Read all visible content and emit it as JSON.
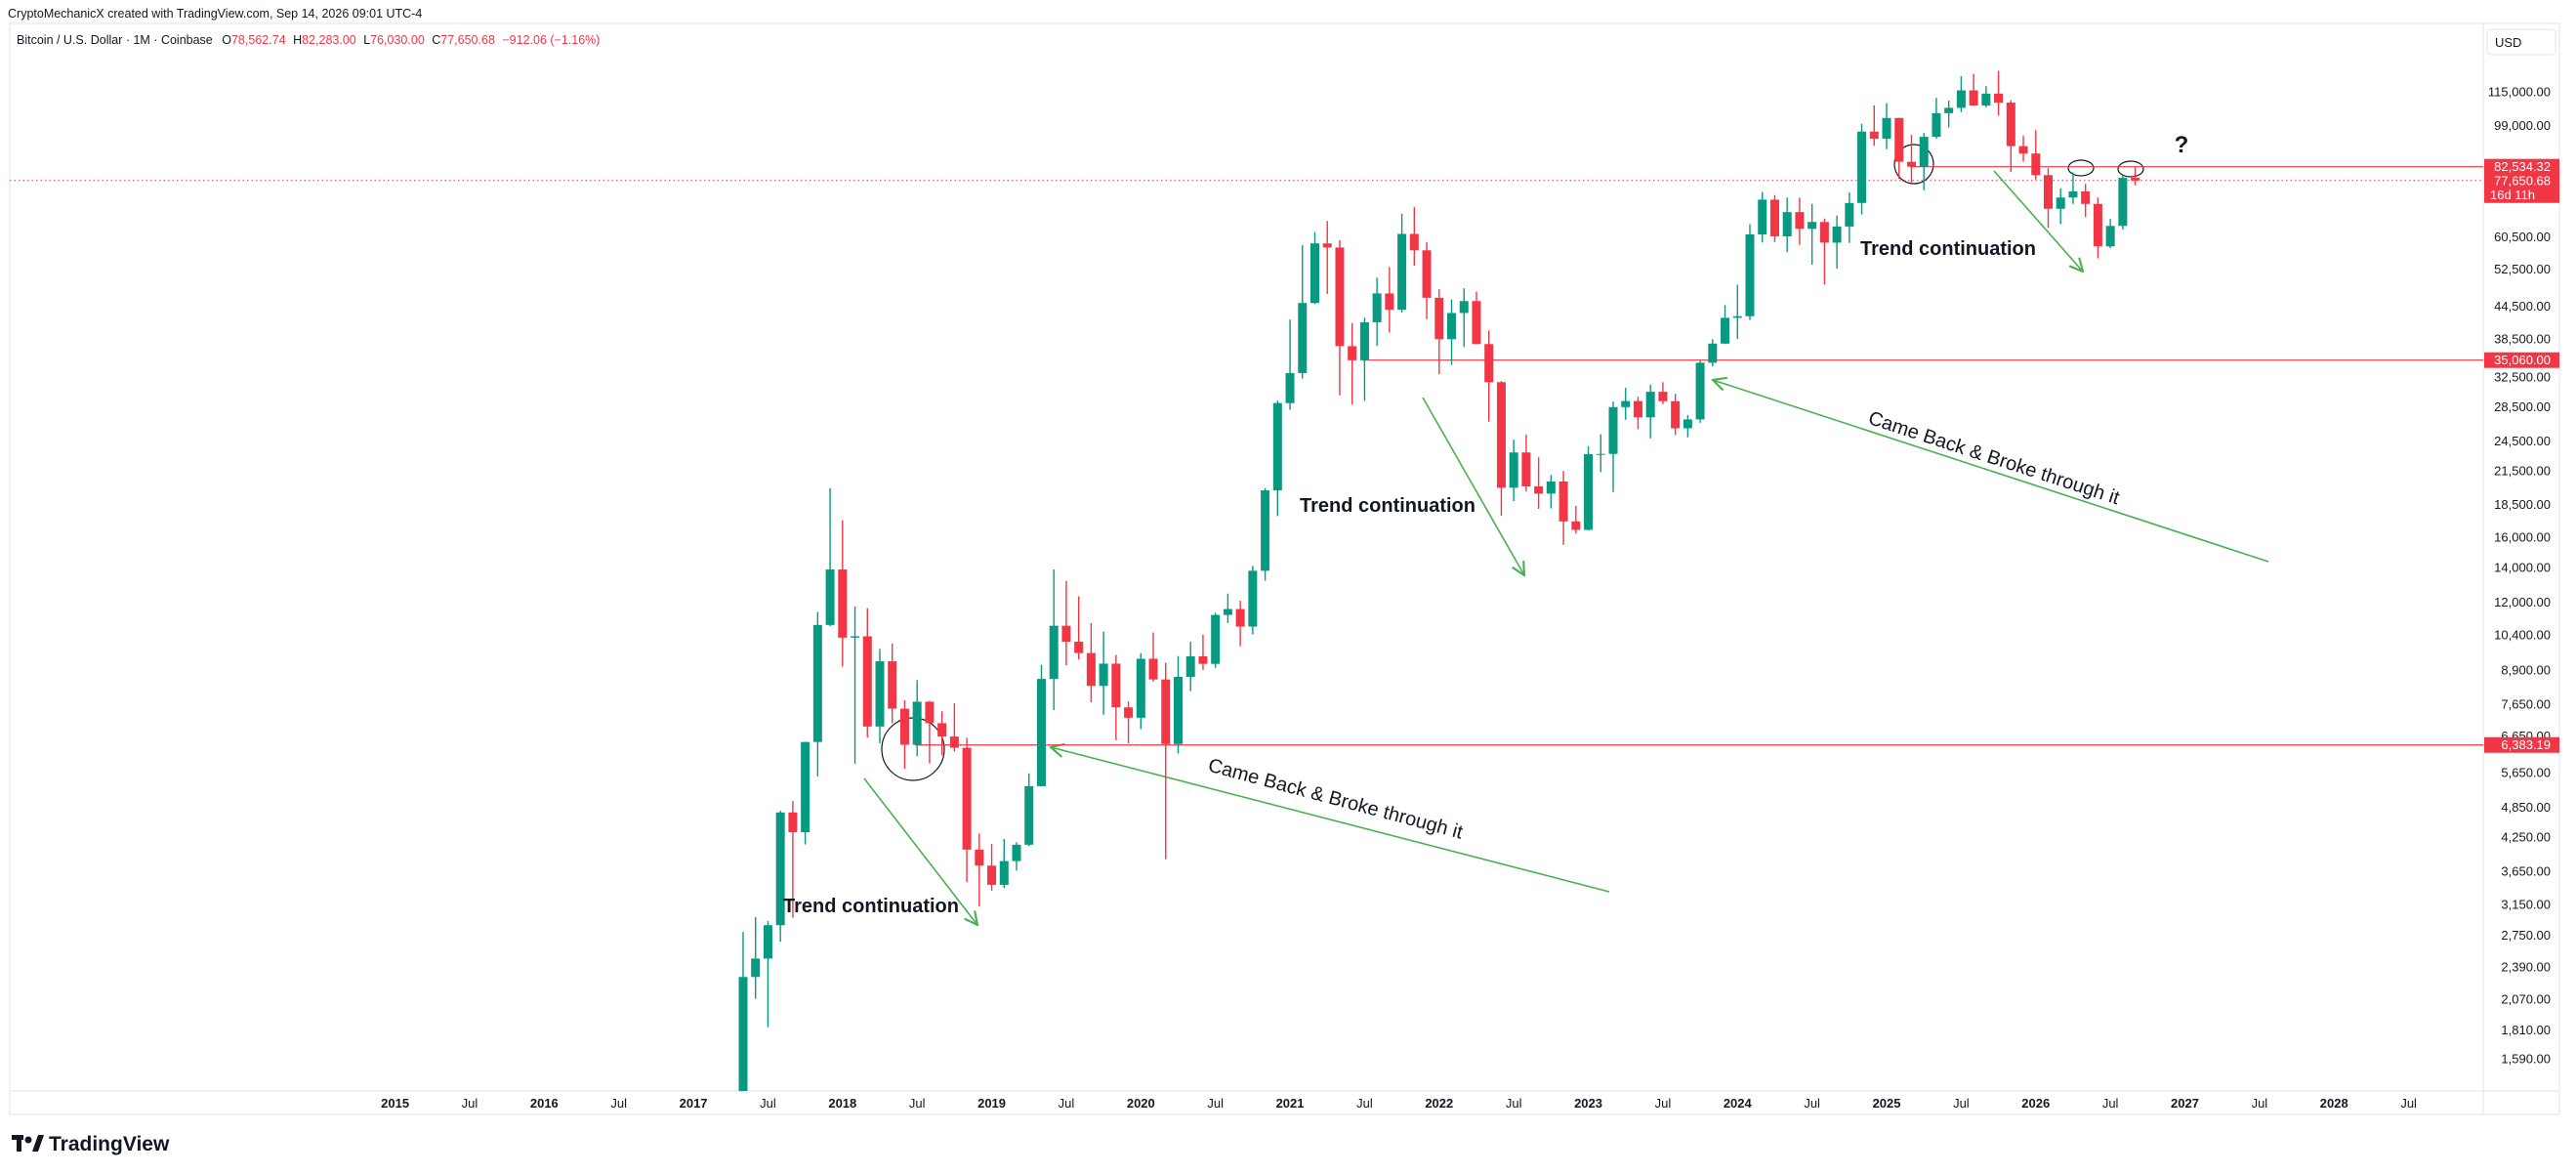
{
  "header": {
    "author_line": "CryptoMechanicX created with TradingView.com, Sep 14, 2026 09:01 UTC-4",
    "symbol": "Bitcoin / U.S. Dollar · 1M · Coinbase",
    "ohlc": [
      {
        "key": "O",
        "value": "78,562.74"
      },
      {
        "key": "H",
        "value": "82,283.00"
      },
      {
        "key": "L",
        "value": "76,030.00"
      },
      {
        "key": "C",
        "value": "77,650.68"
      }
    ],
    "change": "−912.06 (−1.16%)",
    "currency": "USD"
  },
  "footer": {
    "logo": "TradingView"
  },
  "chart_data": {
    "type": "candlestick",
    "log_scale": true,
    "grid": false,
    "up_color": "#089981",
    "down_color": "#f23645",
    "level_color": "#f23645",
    "x": [
      "2017-05",
      "2017-06",
      "2017-07",
      "2017-08",
      "2017-09",
      "2017-10",
      "2017-11",
      "2017-12",
      "2018-01",
      "2018-02",
      "2018-03",
      "2018-04",
      "2018-05",
      "2018-06",
      "2018-07",
      "2018-08",
      "2018-09",
      "2018-10",
      "2018-11",
      "2018-12",
      "2019-01",
      "2019-02",
      "2019-03",
      "2019-04",
      "2019-05",
      "2019-06",
      "2019-07",
      "2019-08",
      "2019-09",
      "2019-10",
      "2019-11",
      "2019-12",
      "2020-01",
      "2020-02",
      "2020-03",
      "2020-04",
      "2020-05",
      "2020-06",
      "2020-07",
      "2020-08",
      "2020-09",
      "2020-10",
      "2020-11",
      "2020-12",
      "2021-01",
      "2021-02",
      "2021-03",
      "2021-04",
      "2021-05",
      "2021-06",
      "2021-07",
      "2021-08",
      "2021-09",
      "2021-10",
      "2021-11",
      "2021-12",
      "2022-01",
      "2022-02",
      "2022-03",
      "2022-04",
      "2022-05",
      "2022-06",
      "2022-07",
      "2022-08",
      "2022-09",
      "2022-10",
      "2022-11",
      "2022-12",
      "2023-01",
      "2023-02",
      "2023-03",
      "2023-04",
      "2023-05",
      "2023-06",
      "2023-07",
      "2023-08",
      "2023-09",
      "2023-10",
      "2023-11",
      "2023-12",
      "2024-01",
      "2024-02",
      "2024-03",
      "2024-04",
      "2024-05",
      "2024-06",
      "2024-07",
      "2024-08",
      "2024-09",
      "2024-10",
      "2024-11",
      "2024-12",
      "2025-01",
      "2025-02",
      "2025-03",
      "2025-04",
      "2025-05",
      "2025-06",
      "2025-07",
      "2025-08",
      "2025-09",
      "2025-10",
      "2025-11",
      "2025-12",
      "2026-01",
      "2026-02",
      "2026-03",
      "2026-04",
      "2026-05",
      "2026-06",
      "2026-07",
      "2026-08",
      "2026-09"
    ],
    "open": [
      1348,
      2286,
      2480,
      2875,
      4735,
      4338,
      6468,
      10858,
      13880,
      10265,
      10326,
      6926,
      9245,
      7495,
      6390,
      7730,
      7030,
      6625,
      6305,
      4017,
      3742,
      3437,
      3818,
      4105,
      5320,
      8550,
      10820,
      10080,
      9590,
      8290,
      9150,
      7540,
      7200,
      9350,
      8530,
      6410,
      8630,
      9450,
      9140,
      11350,
      11650,
      10780,
      13800,
      19700,
      28990,
      33110,
      45140,
      58780,
      57720,
      37300,
      35040,
      41460,
      47100,
      43820,
      61300,
      57000,
      46200,
      38470,
      43190,
      45530,
      37640,
      31800,
      19930,
      23300,
      20050,
      19420,
      20490,
      17170,
      16540,
      23130,
      23150,
      28480,
      29250,
      27220,
      30480,
      29230,
      25930,
      26970,
      34660,
      37720,
      42280,
      42580,
      61170,
      71330,
      60640,
      67500,
      62680,
      64620,
      58970,
      63330,
      70290,
      96400,
      93400,
      102400,
      84350,
      82550,
      94200,
      104600,
      107100,
      115700,
      108200,
      114050,
      109600,
      90400,
      87500,
      79500,
      68500,
      72000,
      74000,
      70000,
      58000,
      63500,
      78562.74
    ],
    "high": [
      2791,
      2980,
      2930,
      4772,
      4980,
      6470,
      11500,
      19892,
      17260,
      11788,
      11690,
      9768,
      10000,
      7780,
      8507,
      7760,
      7410,
      7680,
      6590,
      4310,
      4120,
      4210,
      4150,
      5630,
      9100,
      13880,
      13200,
      12330,
      10950,
      10540,
      9510,
      7740,
      9580,
      10500,
      9180,
      9460,
      10080,
      10400,
      11450,
      12470,
      12090,
      14100,
      19900,
      29300,
      41950,
      58350,
      61780,
      64900,
      59600,
      41330,
      42320,
      50500,
      52920,
      67000,
      69000,
      59100,
      47990,
      45850,
      48190,
      47450,
      40000,
      31950,
      24670,
      25200,
      22800,
      21090,
      21470,
      18390,
      23950,
      25250,
      29190,
      31000,
      29830,
      31440,
      31800,
      30200,
      27500,
      35000,
      38450,
      44730,
      48970,
      64000,
      73800,
      72800,
      71980,
      71980,
      70000,
      65600,
      66500,
      73620,
      99800,
      108300,
      109350,
      102500,
      95000,
      95800,
      111900,
      110600,
      123200,
      124450,
      117900,
      126200,
      110700,
      94600,
      97000,
      82000,
      75000,
      80500,
      76500,
      72000,
      65500,
      79500,
      82283
    ],
    "low": [
      1342,
      2076,
      1830,
      2671,
      2972,
      4110,
      5555,
      10800,
      9035,
      5873,
      6600,
      6430,
      7030,
      5750,
      6073,
      5880,
      6100,
      6200,
      3475,
      3122,
      3350,
      3390,
      3660,
      4080,
      5320,
      7450,
      9080,
      9320,
      7710,
      7300,
      6520,
      6430,
      6850,
      8450,
      3850,
      6150,
      8100,
      8900,
      8980,
      10950,
      9880,
      10420,
      13210,
      17580,
      28130,
      32300,
      44950,
      47000,
      30000,
      28800,
      29280,
      37330,
      39600,
      43300,
      53250,
      42000,
      32930,
      34320,
      37170,
      37600,
      26700,
      17600,
      18780,
      19600,
      18150,
      18190,
      15480,
      16260,
      16500,
      21350,
      19550,
      26940,
      25810,
      24800,
      28860,
      25160,
      24920,
      26560,
      34100,
      37640,
      38500,
      41880,
      59000,
      59100,
      56550,
      58400,
      53500,
      49000,
      52550,
      58900,
      66800,
      90500,
      89200,
      78200,
      76600,
      74400,
      93400,
      98200,
      105100,
      108000,
      107300,
      103500,
      80600,
      84400,
      78000,
      63000,
      64000,
      70000,
      66000,
      55000,
      57500,
      62500,
      76030
    ],
    "close": [
      2286,
      2480,
      2875,
      4735,
      4338,
      6468,
      10858,
      13880,
      10265,
      10326,
      6926,
      9245,
      7495,
      6390,
      7730,
      7030,
      6625,
      6305,
      4017,
      3742,
      3437,
      3818,
      4105,
      5320,
      8550,
      10820,
      10080,
      9590,
      8290,
      9150,
      7540,
      7200,
      9350,
      8530,
      6410,
      8630,
      9450,
      9140,
      11350,
      11650,
      10780,
      13800,
      19700,
      28990,
      33110,
      45140,
      58780,
      57720,
      37300,
      35040,
      41460,
      47100,
      43820,
      61300,
      57000,
      46200,
      38470,
      43190,
      45530,
      37640,
      31800,
      19930,
      23300,
      20050,
      19420,
      20490,
      17170,
      16540,
      23130,
      23150,
      28480,
      29250,
      27220,
      30480,
      29230,
      25930,
      26970,
      34660,
      37720,
      42280,
      42580,
      61170,
      71330,
      60640,
      67500,
      62680,
      64620,
      58970,
      63330,
      70290,
      96400,
      93400,
      102400,
      84350,
      82550,
      94200,
      104600,
      107100,
      115700,
      108200,
      114050,
      109600,
      90400,
      87500,
      79500,
      68500,
      72000,
      74000,
      70000,
      58000,
      63500,
      78562.74,
      77650.68
    ],
    "xlim": [
      "2012-06",
      "2029-01"
    ],
    "xticks": [
      {
        "value": "2015-01",
        "label": "2015"
      },
      {
        "value": "2015-07",
        "label": "Jul"
      },
      {
        "value": "2016-01",
        "label": "2016"
      },
      {
        "value": "2016-07",
        "label": "Jul"
      },
      {
        "value": "2017-01",
        "label": "2017"
      },
      {
        "value": "2017-07",
        "label": "Jul"
      },
      {
        "value": "2018-01",
        "label": "2018"
      },
      {
        "value": "2018-07",
        "label": "Jul"
      },
      {
        "value": "2019-01",
        "label": "2019"
      },
      {
        "value": "2019-07",
        "label": "Jul"
      },
      {
        "value": "2020-01",
        "label": "2020"
      },
      {
        "value": "2020-07",
        "label": "Jul"
      },
      {
        "value": "2021-01",
        "label": "2021"
      },
      {
        "value": "2021-07",
        "label": "Jul"
      },
      {
        "value": "2022-01",
        "label": "2022"
      },
      {
        "value": "2022-07",
        "label": "Jul"
      },
      {
        "value": "2023-01",
        "label": "2023"
      },
      {
        "value": "2023-07",
        "label": "Jul"
      },
      {
        "value": "2024-01",
        "label": "2024"
      },
      {
        "value": "2024-07",
        "label": "Jul"
      },
      {
        "value": "2025-01",
        "label": "2025"
      },
      {
        "value": "2025-07",
        "label": "Jul"
      },
      {
        "value": "2026-01",
        "label": "2026"
      },
      {
        "value": "2026-07",
        "label": "Jul"
      },
      {
        "value": "2027-01",
        "label": "2027"
      },
      {
        "value": "2027-07",
        "label": "Jul"
      },
      {
        "value": "2028-01",
        "label": "2028"
      },
      {
        "value": "2028-07",
        "label": "Jul"
      }
    ],
    "ylim": [
      1380,
      155600
    ],
    "yticks": [
      {
        "value": 115000,
        "label": "115,000.00"
      },
      {
        "value": 99000,
        "label": "99,000.00"
      },
      {
        "value": 60500,
        "label": "60,500.00"
      },
      {
        "value": 52500,
        "label": "52,500.00"
      },
      {
        "value": 44500,
        "label": "44,500.00"
      },
      {
        "value": 38500,
        "label": "38,500.00"
      },
      {
        "value": 32500,
        "label": "32,500.00"
      },
      {
        "value": 28500,
        "label": "28,500.00"
      },
      {
        "value": 24500,
        "label": "24,500.00"
      },
      {
        "value": 21500,
        "label": "21,500.00"
      },
      {
        "value": 18500,
        "label": "18,500.00"
      },
      {
        "value": 16000,
        "label": "16,000.00"
      },
      {
        "value": 14000,
        "label": "14,000.00"
      },
      {
        "value": 12000,
        "label": "12,000.00"
      },
      {
        "value": 10400,
        "label": "10,400.00"
      },
      {
        "value": 8900,
        "label": "8,900.00"
      },
      {
        "value": 7650,
        "label": "7,650.00"
      },
      {
        "value": 6650,
        "label": "6,650.00"
      },
      {
        "value": 5650,
        "label": "5,650.00"
      },
      {
        "value": 4850,
        "label": "4,850.00"
      },
      {
        "value": 4250,
        "label": "4,250.00"
      },
      {
        "value": 3650,
        "label": "3,650.00"
      },
      {
        "value": 3150,
        "label": "3,150.00"
      },
      {
        "value": 2750,
        "label": "2,750.00"
      },
      {
        "value": 2390,
        "label": "2,390.00"
      },
      {
        "value": 2070,
        "label": "2,070.00"
      },
      {
        "value": 1810,
        "label": "1,810.00"
      },
      {
        "value": 1590,
        "label": "1,590.00"
      }
    ],
    "levels": [
      {
        "value": 82534.32,
        "label": "82,534.32"
      },
      {
        "value": 35060,
        "label": "35,060.00"
      },
      {
        "value": 6383.19,
        "label": "6,383.19"
      }
    ],
    "last_price": {
      "value": 77650.68,
      "label": "77,650.68",
      "countdown": "16d 11h"
    },
    "annotations": [
      "Trend continuation",
      "Came Back & Broke through it",
      "Trend continuation",
      "Came Back & Broke through it",
      "Trend continuation",
      "?"
    ]
  }
}
